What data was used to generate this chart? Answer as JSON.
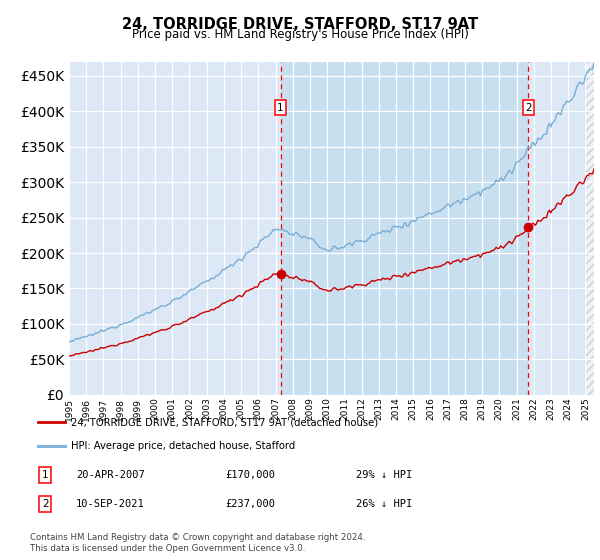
{
  "title": "24, TORRIDGE DRIVE, STAFFORD, ST17 9AT",
  "subtitle": "Price paid vs. HM Land Registry's House Price Index (HPI)",
  "ylim": [
    0,
    470000
  ],
  "yticks": [
    0,
    50000,
    100000,
    150000,
    200000,
    250000,
    300000,
    350000,
    400000,
    450000
  ],
  "line_color_red": "#cc0000",
  "line_color_blue": "#7aadd4",
  "bg_color": "#dce8f5",
  "shade_color": "#c8dff0",
  "grid_color": "#ffffff",
  "transaction1_date": "20-APR-2007",
  "transaction1_price": 170000,
  "transaction1_pct": "29% ↓ HPI",
  "transaction1_year": 2007.29,
  "transaction2_date": "10-SEP-2021",
  "transaction2_price": 237000,
  "transaction2_pct": "26% ↓ HPI",
  "transaction2_year": 2021.69,
  "legend_label_red": "24, TORRIDGE DRIVE, STAFFORD, ST17 9AT (detached house)",
  "legend_label_blue": "HPI: Average price, detached house, Stafford",
  "footnote": "Contains HM Land Registry data © Crown copyright and database right 2024.\nThis data is licensed under the Open Government Licence v3.0.",
  "x_start_year": 1995,
  "x_end_year": 2025
}
